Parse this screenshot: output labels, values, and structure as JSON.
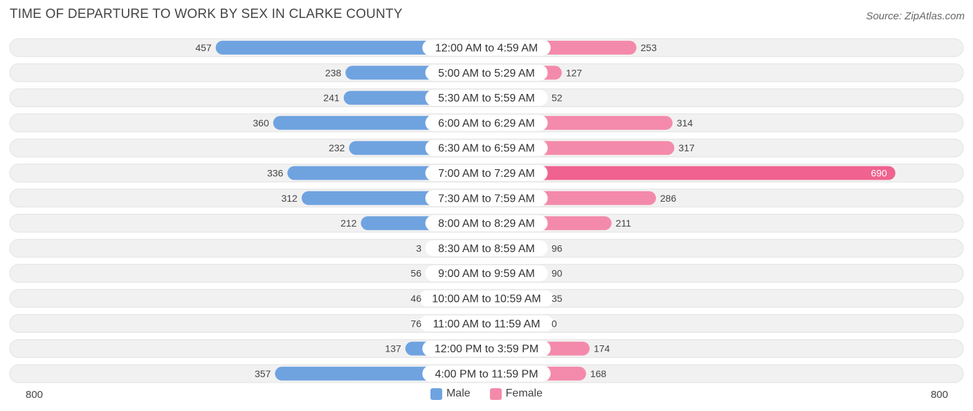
{
  "title": "TIME OF DEPARTURE TO WORK BY SEX IN CLARKE COUNTY",
  "source": "Source: ZipAtlas.com",
  "colors": {
    "male": "#6fa3e0",
    "male_light": "#a7c8ee",
    "female": "#f48aab",
    "female_strong": "#f0628f",
    "row_bg": "#f1f1f1"
  },
  "chart_data": {
    "type": "bar",
    "orientation": "horizontal-diverging",
    "categories": [
      "12:00 AM to 4:59 AM",
      "5:00 AM to 5:29 AM",
      "5:30 AM to 5:59 AM",
      "6:00 AM to 6:29 AM",
      "6:30 AM to 6:59 AM",
      "7:00 AM to 7:29 AM",
      "7:30 AM to 7:59 AM",
      "8:00 AM to 8:29 AM",
      "8:30 AM to 8:59 AM",
      "9:00 AM to 9:59 AM",
      "10:00 AM to 10:59 AM",
      "11:00 AM to 11:59 AM",
      "12:00 PM to 3:59 PM",
      "4:00 PM to 11:59 PM"
    ],
    "series": [
      {
        "name": "Male",
        "values": [
          457,
          238,
          241,
          360,
          232,
          336,
          312,
          212,
          3,
          56,
          46,
          76,
          137,
          357
        ]
      },
      {
        "name": "Female",
        "values": [
          253,
          127,
          52,
          314,
          317,
          690,
          286,
          211,
          96,
          90,
          35,
          0,
          174,
          168
        ]
      }
    ],
    "axis_min_label": "800",
    "axis_max_label": "800",
    "xlim": [
      -800,
      800
    ],
    "legend": [
      "Male",
      "Female"
    ],
    "legend_position": "bottom-center"
  }
}
